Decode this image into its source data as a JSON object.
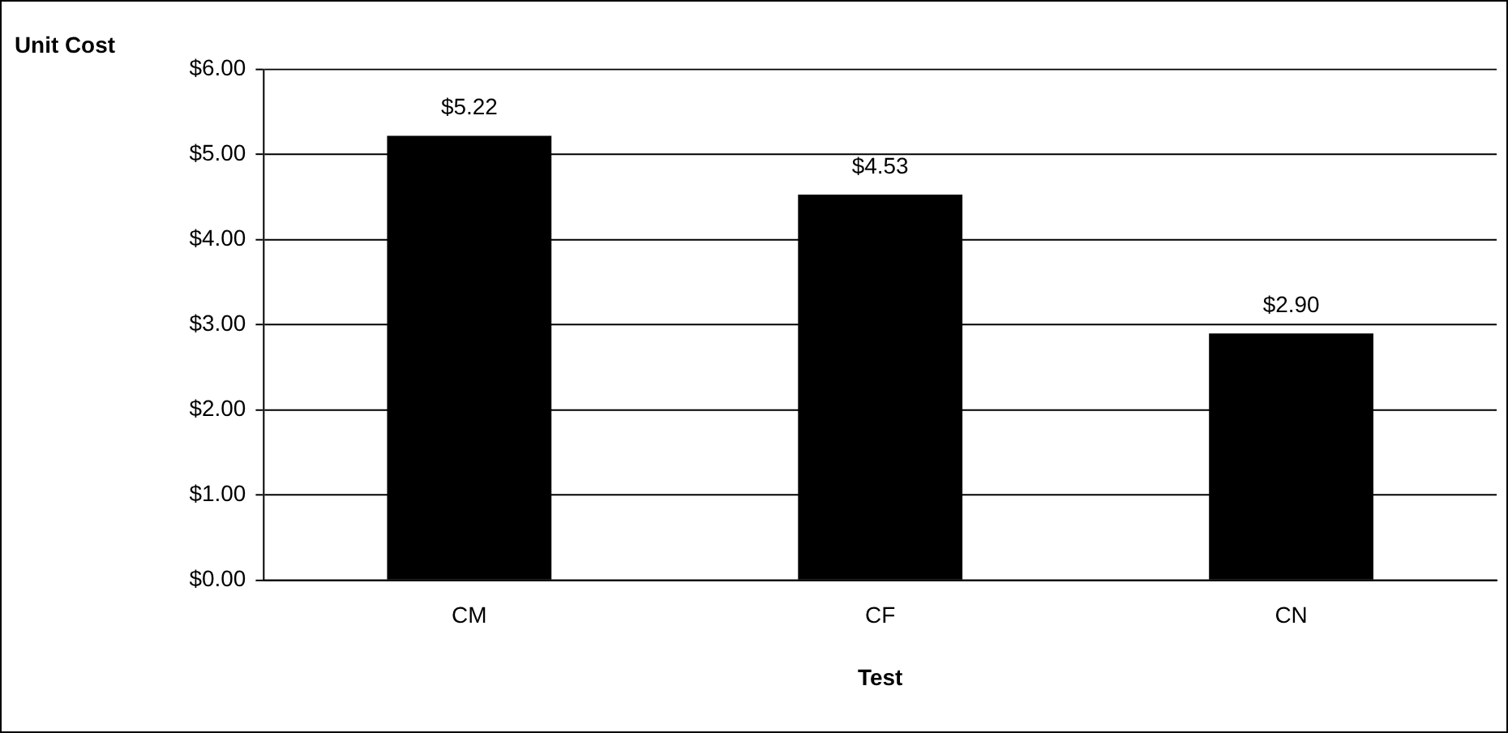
{
  "chart_data": {
    "type": "bar",
    "xlabel": "Test",
    "ylabel": "Unit Cost",
    "categories": [
      "CM",
      "CF",
      "CN"
    ],
    "values": [
      5.22,
      4.53,
      2.9
    ],
    "value_labels": [
      "$5.22",
      "$4.53",
      "$2.90"
    ],
    "color": "#000000",
    "ylim": [
      0,
      6
    ],
    "yticks": [
      {
        "value": 0,
        "label": "$0.00"
      },
      {
        "value": 1,
        "label": "$1.00"
      },
      {
        "value": 2,
        "label": "$2.00"
      },
      {
        "value": 3,
        "label": "$3.00"
      },
      {
        "value": 4,
        "label": "$4.00"
      },
      {
        "value": 5,
        "label": "$5.00"
      },
      {
        "value": 6,
        "label": "$6.00"
      }
    ],
    "grid": "y",
    "legend": false
  }
}
